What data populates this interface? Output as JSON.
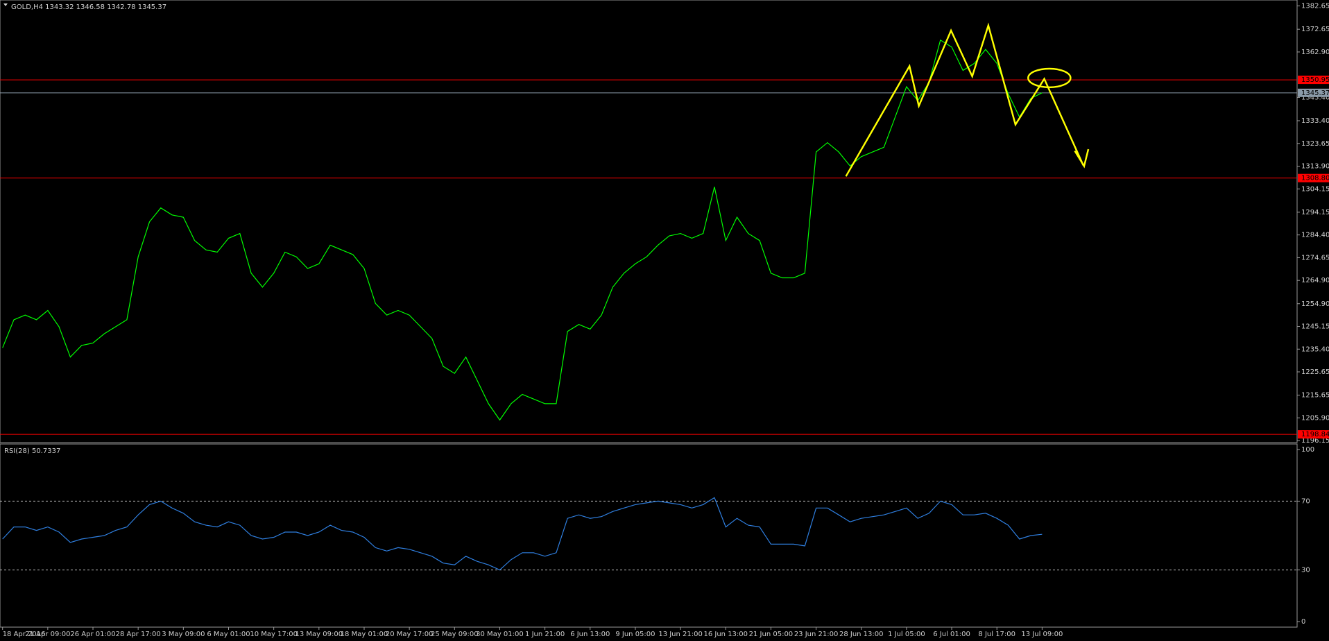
{
  "chart_data": [
    {
      "type": "line",
      "title": "GOLD,H4  1343.32 1346.58 1342.78 1345.37",
      "categories": [
        "18 Apr 2016",
        null,
        null,
        null,
        "21 Apr 09:00",
        null,
        null,
        null,
        "26 Apr 01:00",
        null,
        null,
        null,
        "28 Apr 17:00",
        null,
        null,
        null,
        "3 May 09:00",
        null,
        null,
        null,
        "6 May 01:00",
        null,
        null,
        null,
        "10 May 17:00",
        null,
        null,
        null,
        "13 May 09:00",
        null,
        null,
        null,
        "18 May 01:00",
        null,
        null,
        null,
        "20 May 17:00",
        null,
        null,
        null,
        "25 May 09:00",
        null,
        null,
        null,
        "30 May 01:00",
        null,
        null,
        null,
        "1 Jun 21:00",
        null,
        null,
        null,
        "6 Jun 13:00",
        null,
        null,
        null,
        "9 Jun 05:00",
        null,
        null,
        null,
        "13 Jun 21:00",
        null,
        null,
        null,
        "16 Jun 13:00",
        null,
        null,
        null,
        "21 Jun 05:00",
        null,
        null,
        null,
        "23 Jun 21:00",
        null,
        null,
        null,
        "28 Jun 13:00",
        null,
        null,
        null,
        "1 Jul 05:00",
        null,
        null,
        null,
        "6 Jul 01:00",
        null,
        null,
        null,
        "8 Jul 17:00",
        null,
        null,
        null,
        "13 Jul 09:00"
      ],
      "series": [
        {
          "color": "#00ff00",
          "values": [
            1236,
            1248,
            1250,
            1248,
            1252,
            1245,
            1232,
            1237,
            1238,
            1242,
            1245,
            1248,
            1275,
            1290,
            1296,
            1293,
            1292,
            1282,
            1278,
            1277,
            1283,
            1285,
            1268,
            1262,
            1268,
            1277,
            1275,
            1270,
            1272,
            1280,
            1278,
            1276,
            1270,
            1255,
            1250,
            1252,
            1250,
            1245,
            1240,
            1228,
            1225,
            1232,
            1222,
            1212,
            1205,
            1212,
            1216,
            1214,
            1212,
            1212,
            1243,
            1246,
            1244,
            1250,
            1262,
            1268,
            1272,
            1275,
            1280,
            1284,
            1285,
            1283,
            1285,
            1305,
            1282,
            1292,
            1285,
            1282,
            1268,
            1266,
            1266,
            1268,
            1320,
            1324,
            1320,
            1314,
            1318,
            1320,
            1322,
            1335,
            1348,
            1342,
            1350,
            1368,
            1365,
            1355,
            1358,
            1364,
            1358,
            1345,
            1335,
            1343,
            1345.37
          ]
        }
      ],
      "ylim": [
        1195.3,
        1385.2
      ],
      "yticks": [
        1382.65,
        1372.65,
        {
          "value": 1362.9,
          "label": "1362.90"
        },
        {
          "value": 1343.4,
          "label": "1343.40"
        },
        {
          "value": 1333.4,
          "label": "1333.40"
        },
        1323.65,
        {
          "value": 1313.9,
          "label": "1313.90"
        },
        1304.15,
        1294.15,
        {
          "value": 1284.4,
          "label": "1284.40"
        },
        1274.65,
        {
          "value": 1264.9,
          "label": "1264.90"
        },
        {
          "value": 1254.9,
          "label": "1254.90"
        },
        1245.15,
        {
          "value": 1235.4,
          "label": "1235.40"
        },
        1225.65,
        1215.65,
        {
          "value": 1205.9,
          "label": "1205.90"
        },
        1196.15
      ],
      "grid": false,
      "levels": [
        {
          "value": 1350.95,
          "color": "#ff0000"
        },
        {
          "value": {
            "value": 1308.8,
            "label": "1308.80"
          },
          "color": "#ff0000"
        },
        {
          "value": 1198.84,
          "color": "#ff0000"
        },
        {
          "value": 1345.37,
          "color": "#8a9aa8"
        }
      ]
    },
    {
      "type": "line",
      "title": "RSI(28) 50.7337",
      "series": [
        {
          "color": "#2f7fe0",
          "values": [
            48,
            55,
            55,
            53,
            55,
            52,
            46,
            48,
            49,
            50,
            53,
            55,
            62,
            68,
            70,
            66,
            63,
            58,
            56,
            55,
            58,
            56,
            50,
            48,
            49,
            52,
            52,
            50,
            52,
            56,
            53,
            52,
            49,
            43,
            41,
            43,
            42,
            40,
            38,
            34,
            33,
            38,
            35,
            33,
            30,
            36,
            40,
            40,
            38,
            40,
            60,
            62,
            60,
            61,
            64,
            66,
            68,
            69,
            70,
            69,
            68,
            66,
            68,
            72,
            55,
            60,
            56,
            55,
            45,
            45,
            45,
            44,
            66,
            66,
            62,
            58,
            60,
            61,
            62,
            64,
            66,
            60,
            63,
            70,
            68,
            62,
            62,
            63,
            60,
            56,
            48,
            50,
            50.7337
          ]
        }
      ],
      "ylim": [
        0,
        100
      ],
      "yticks": [
        0,
        30,
        70,
        100
      ],
      "grid": true
    }
  ]
}
